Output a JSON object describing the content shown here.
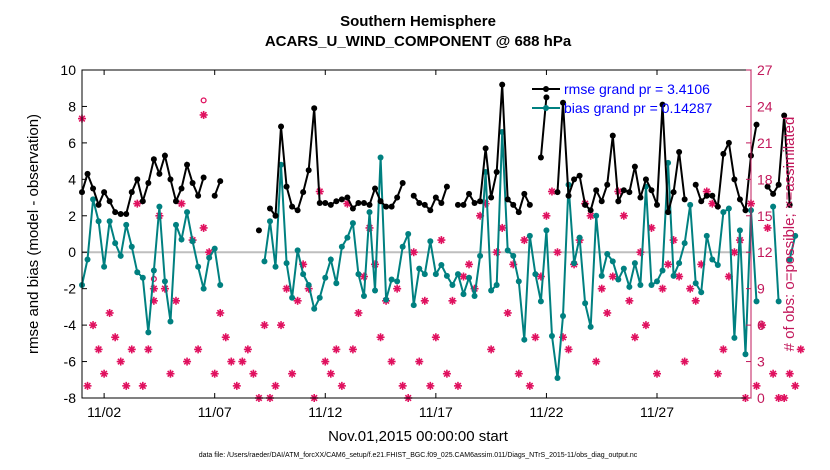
{
  "chart_data": {
    "type": "line",
    "title": [
      "Southern Hemisphere",
      "ACARS_U_WIND_COMPONENT @ 688 hPa"
    ],
    "xlabel": "Nov.01,2015 00:00:00 start",
    "ylabel": "rmse and bias (model - observation)",
    "y2label": "# of obs: o=possible; ×=assimilated",
    "footnote": "data file: /Users/raeder/DAI/ATM_forcXX/CAM6_setup/f.e21.FHIST_BGC.f09_025.CAM6assim.011/Diags_NTrS_2015-11/obs_diag_output.nc",
    "xticks": [
      {
        "day": 2,
        "label": "11/02"
      },
      {
        "day": 7,
        "label": "11/07"
      },
      {
        "day": 12,
        "label": "11/12"
      },
      {
        "day": 17,
        "label": "11/17"
      },
      {
        "day": 22,
        "label": "11/22"
      },
      {
        "day": 27,
        "label": "11/27"
      }
    ],
    "xlim_days": [
      1.0,
      31.25
    ],
    "ylim": [
      -8,
      10
    ],
    "yticks": [
      -8,
      -6,
      -4,
      -2,
      0,
      2,
      4,
      6,
      8,
      10
    ],
    "y2lim": [
      0,
      27
    ],
    "y2ticks": [
      0,
      3,
      6,
      9,
      12,
      15,
      18,
      21,
      24,
      27
    ],
    "grid": false,
    "zero_line": true,
    "legend_position": "top-right",
    "colors": {
      "rmse": "#000000",
      "bias": "#008080",
      "obs": "#e0115f",
      "legend_text": "#0000ff",
      "right_axis": "#c2185b",
      "zero": "#bfbfbf"
    },
    "series": [
      {
        "name": "rmse",
        "legend": "rmse grand pr = 3.4106",
        "values": [
          3.3,
          4.3,
          3.5,
          2.6,
          3.3,
          2.8,
          2.2,
          2.1,
          2.1,
          3.3,
          4.0,
          2.8,
          3.8,
          5.1,
          4.3,
          5.3,
          4.0,
          2.8,
          3.5,
          4.8,
          3.8,
          3.1,
          4.1,
          null,
          3.1,
          3.9,
          null,
          null,
          null,
          null,
          null,
          null,
          1.2,
          null,
          2.4,
          2.0,
          6.9,
          3.6,
          2.5,
          2.3,
          3.3,
          4.5,
          7.9,
          2.7,
          2.7,
          2.6,
          2.8,
          2.9,
          3.0,
          2.4,
          2.7,
          2.7,
          2.6,
          3.5,
          2.8,
          2.5,
          2.5,
          3.0,
          3.8,
          null,
          3.1,
          2.7,
          2.6,
          2.3,
          3.0,
          2.7,
          3.6,
          null,
          2.6,
          2.6,
          3.2,
          2.7,
          2.8,
          5.7,
          3.0,
          4.4,
          9.2,
          2.9,
          2.6,
          2.2,
          3.2,
          2.6,
          null,
          5.2,
          8.5,
          null,
          3.3,
          8.2,
          3.1,
          4.0,
          4.2,
          2.6,
          2.3,
          3.4,
          2.8,
          3.7,
          6.4,
          2.8,
          3.4,
          3.3,
          4.7,
          3.0,
          4.0,
          3.4,
          2.6,
          8.1,
          2.2,
          3.3,
          5.5,
          2.9,
          null,
          3.7,
          2.8,
          3.1,
          3.1,
          2.5,
          5.4,
          6.0,
          4.0,
          2.9,
          2.3,
          5.3,
          7.0,
          null,
          3.6,
          3.2,
          3.7,
          7.5,
          2.6
        ]
      },
      {
        "name": "bias",
        "legend": "bias grand pr = 0.14287",
        "values": [
          -1.8,
          -0.4,
          2.9,
          1.7,
          -0.8,
          1.7,
          0.5,
          -0.2,
          1.5,
          0.3,
          -1.1,
          -1.4,
          -4.4,
          -1.0,
          2.5,
          -1.6,
          -3.8,
          1.5,
          0.7,
          2.2,
          0.6,
          -0.8,
          -2.0,
          -0.3,
          0.2,
          -1.8,
          null,
          null,
          null,
          null,
          null,
          null,
          null,
          -0.5,
          1.7,
          -0.8,
          4.8,
          -0.6,
          -2.5,
          0.1,
          -1.2,
          -1.8,
          -3.1,
          -2.5,
          -1.4,
          -0.4,
          -1.7,
          0.3,
          0.8,
          1.6,
          -1.2,
          -2.4,
          2.2,
          -2.1,
          5.2,
          -2.6,
          -1.5,
          -1.6,
          0.3,
          1.0,
          -2.9,
          -0.9,
          -1.2,
          0.6,
          -1.2,
          -0.7,
          -1.3,
          -1.8,
          -1.2,
          -2.3,
          -1.4,
          -2.4,
          -0.2,
          4.4,
          -2.1,
          -1.8,
          6.6,
          0.1,
          -0.2,
          -1.6,
          -4.8,
          0.9,
          -1.2,
          -2.7,
          1.2,
          -4.6,
          -6.9,
          -3.5,
          3.7,
          -0.6,
          0.8,
          -2.8,
          -4.1,
          2.0,
          -1.3,
          -0.1,
          -0.5,
          -1.5,
          -0.9,
          -1.9,
          -0.6,
          -1.8,
          3.6,
          -1.8,
          -1.6,
          -1.0,
          4.9,
          -1.3,
          -0.6,
          0.5,
          2.6,
          -1.7,
          -2.2,
          0.9,
          -0.4,
          -0.7,
          2.2,
          2.4,
          -4.7,
          1.2,
          -5.6,
          2.3,
          -2.7,
          null,
          null,
          2.5,
          -2.7,
          null,
          -0.4,
          0.9
        ]
      },
      {
        "name": "obs possible",
        "marker": "circle",
        "values": [
          23,
          1,
          6,
          4,
          2,
          7,
          5,
          3,
          1,
          4,
          16,
          1,
          4,
          8,
          15,
          9,
          2,
          8,
          16,
          3,
          13,
          4,
          14,
          12,
          2,
          7,
          5,
          3,
          1,
          3,
          4,
          2,
          0,
          6,
          0,
          1,
          6,
          9,
          2,
          8,
          11,
          9,
          0,
          17,
          3,
          2,
          4,
          1,
          16,
          4,
          7,
          10,
          14,
          11,
          5,
          8,
          3,
          9,
          1,
          0,
          12,
          3,
          8,
          1,
          5,
          13,
          2,
          8,
          1,
          10,
          11,
          9,
          15,
          16,
          4,
          12,
          14,
          7,
          11,
          2,
          13,
          1,
          5,
          10,
          15,
          17,
          12,
          5,
          4,
          11,
          13,
          16,
          15,
          3,
          9,
          7,
          10,
          17,
          15,
          8,
          5,
          12,
          6,
          14,
          2,
          9,
          11,
          13,
          10,
          3,
          9,
          8,
          11,
          17,
          16,
          2,
          4,
          10,
          12,
          13,
          0,
          16,
          1,
          6,
          14,
          2,
          0,
          0,
          2,
          1,
          4
        ]
      },
      {
        "name": "obs assimilated",
        "marker": "asterisk",
        "values": [
          23,
          1,
          6,
          4,
          2,
          7,
          5,
          3,
          1,
          4,
          16,
          1,
          4,
          8,
          15,
          9,
          2,
          8,
          16,
          3,
          13,
          4,
          14,
          12,
          2,
          7,
          5,
          3,
          1,
          3,
          4,
          2,
          0,
          6,
          0,
          1,
          6,
          9,
          2,
          8,
          11,
          9,
          0,
          17,
          3,
          2,
          4,
          1,
          16,
          4,
          7,
          10,
          14,
          11,
          5,
          8,
          3,
          9,
          1,
          0,
          12,
          3,
          8,
          1,
          5,
          13,
          2,
          8,
          1,
          10,
          11,
          9,
          15,
          16,
          4,
          12,
          14,
          7,
          11,
          2,
          13,
          1,
          5,
          10,
          15,
          17,
          12,
          5,
          4,
          11,
          13,
          16,
          15,
          3,
          9,
          7,
          10,
          17,
          15,
          8,
          5,
          12,
          6,
          14,
          2,
          9,
          11,
          13,
          10,
          3,
          9,
          8,
          11,
          17,
          16,
          2,
          4,
          10,
          12,
          13,
          0,
          16,
          1,
          6,
          14,
          2,
          0,
          0,
          2,
          1,
          4
        ]
      }
    ],
    "extra_possible_points": [
      {
        "idx": 13,
        "y2": 9.8
      },
      {
        "idx": 22,
        "y2": 24.5
      }
    ],
    "extra_assimilated_points": [
      {
        "idx": 13,
        "y2": 9.0
      },
      {
        "idx": 22,
        "y2": 23.3
      }
    ]
  }
}
